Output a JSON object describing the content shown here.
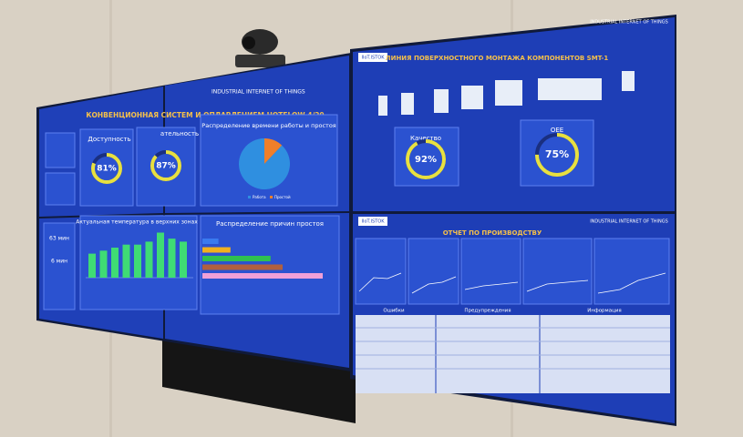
{
  "left_screen": {
    "brand": "INDUSTRIAL INTERNET OF THINGS",
    "title": "КОНВЕНЦИОННАЯ СИСТЕМ И ОПЛАВЛЕНИЕМ HOTFLOW 4/20",
    "availability": {
      "label": "Доступность",
      "value": 81,
      "value_label": "81%"
    },
    "performance": {
      "label": "ательность",
      "value": 87,
      "value_label": "87%"
    },
    "stats": [
      "63 мин",
      "6 мин"
    ],
    "time_chart": {
      "type": "pie",
      "title": "Распределение времени работы и простоя",
      "categories": [
        "Работа",
        "Простой"
      ],
      "values": [
        88,
        12
      ],
      "colors": [
        "#2f8fe0",
        "#f07f2a"
      ]
    },
    "temperature_chart": {
      "type": "bar",
      "title": "Актуальная температура в верхних зонах",
      "values": [
        8,
        9,
        10,
        11,
        11,
        12,
        15,
        13,
        12
      ],
      "color": "#3fdc74"
    },
    "downtime_chart": {
      "type": "hbar",
      "title": "Распределение причин простоя",
      "values": [
        4,
        7,
        17,
        20,
        30
      ],
      "colors": [
        "#3a7af0",
        "#f0b020",
        "#2fc050",
        "#b06040",
        "#f0a0d8"
      ]
    }
  },
  "right_top": {
    "brand": "IIoT.ISTOK",
    "corner": "INDUSTRIAL INTERNET OF THINGS",
    "title": "ЛИНИЯ ПОВЕРХНОСТНОГО МОНТАЖА КОМПОНЕНТОВ SMT-1",
    "quality": {
      "label": "Качество",
      "value": 92,
      "value_label": "92%"
    },
    "oee": {
      "label": "OEE",
      "value": 75,
      "value_label": "75%"
    }
  },
  "right_bottom": {
    "brand": "IIoT.ISTOK",
    "corner": "INDUSTRIAL INTERNET OF THINGS",
    "title": "ОТЧЕТ ПО ПРОИЗВОДСТВУ",
    "columns": [
      "Ошибки",
      "Предупреждения",
      "Информация"
    ]
  }
}
